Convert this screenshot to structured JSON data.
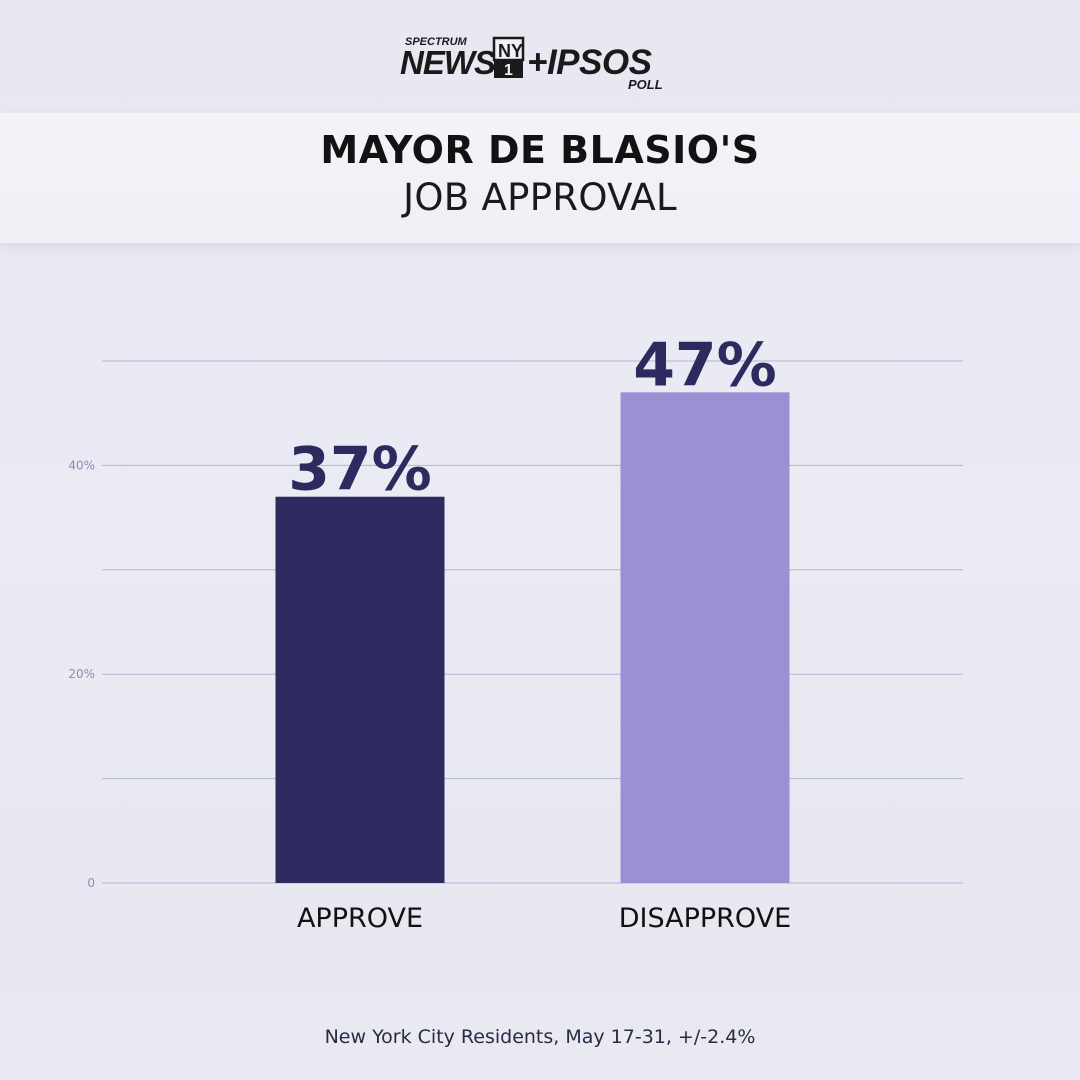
{
  "brand": {
    "line_small": "SPECTRUM",
    "news": "NEWS",
    "ny1": "NY",
    "ny1_num": "1",
    "plus_ipsos": "+IPSOS",
    "poll": "POLL"
  },
  "title": {
    "line1": "MAYOR DE BLASIO'S",
    "line2": "JOB APPROVAL"
  },
  "footer": {
    "note": "New York City Residents, May 17-31, +/-2.4%"
  },
  "colors": {
    "approve": "#2c2a5e",
    "disapprove": "#9a90d2",
    "gridline": "#b6b3d6",
    "tick": "#8e8ab6",
    "value_label": "#2c2a5e"
  },
  "chart_data": {
    "type": "bar",
    "categories": [
      "APPROVE",
      "DISAPPROVE"
    ],
    "values": [
      37,
      47
    ],
    "value_labels": [
      "37%",
      "47%"
    ],
    "ylim": [
      0,
      50
    ],
    "ticks": [
      {
        "value": 0,
        "label": "0"
      },
      {
        "value": 10,
        "label": ""
      },
      {
        "value": 20,
        "label": "20%"
      },
      {
        "value": 30,
        "label": ""
      },
      {
        "value": 40,
        "label": "40%"
      },
      {
        "value": 50,
        "label": ""
      }
    ],
    "grid": true,
    "legend": "none",
    "title": "MAYOR DE BLASIO'S JOB APPROVAL",
    "xlabel": "",
    "ylabel": ""
  }
}
